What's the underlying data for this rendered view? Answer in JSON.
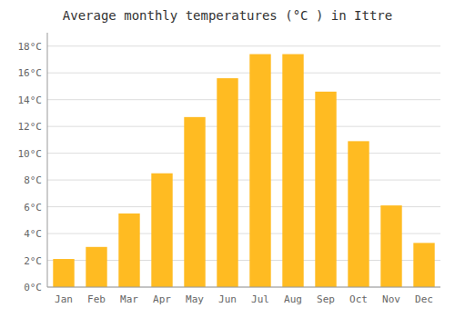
{
  "chart_data": {
    "type": "bar",
    "title": "Average monthly temperatures (°C ) in Ittre",
    "categories": [
      "Jan",
      "Feb",
      "Mar",
      "Apr",
      "May",
      "Jun",
      "Jul",
      "Aug",
      "Sep",
      "Oct",
      "Nov",
      "Dec"
    ],
    "values": [
      2.1,
      3.0,
      5.5,
      8.5,
      12.7,
      15.6,
      17.4,
      17.4,
      14.6,
      10.9,
      6.1,
      3.3
    ],
    "color": "#FFBB22",
    "ylim": [
      0,
      19
    ],
    "yticks": [
      {
        "value": 0,
        "label": "0°C"
      },
      {
        "value": 2,
        "label": "2°C"
      },
      {
        "value": 4,
        "label": "4°C"
      },
      {
        "value": 6,
        "label": "6°C"
      },
      {
        "value": 8,
        "label": "8°C"
      },
      {
        "value": 10,
        "label": "10°C"
      },
      {
        "value": 12,
        "label": "12°C"
      },
      {
        "value": 14,
        "label": "14°C"
      },
      {
        "value": 16,
        "label": "16°C"
      },
      {
        "value": 18,
        "label": "18°C"
      }
    ],
    "grid": true
  }
}
